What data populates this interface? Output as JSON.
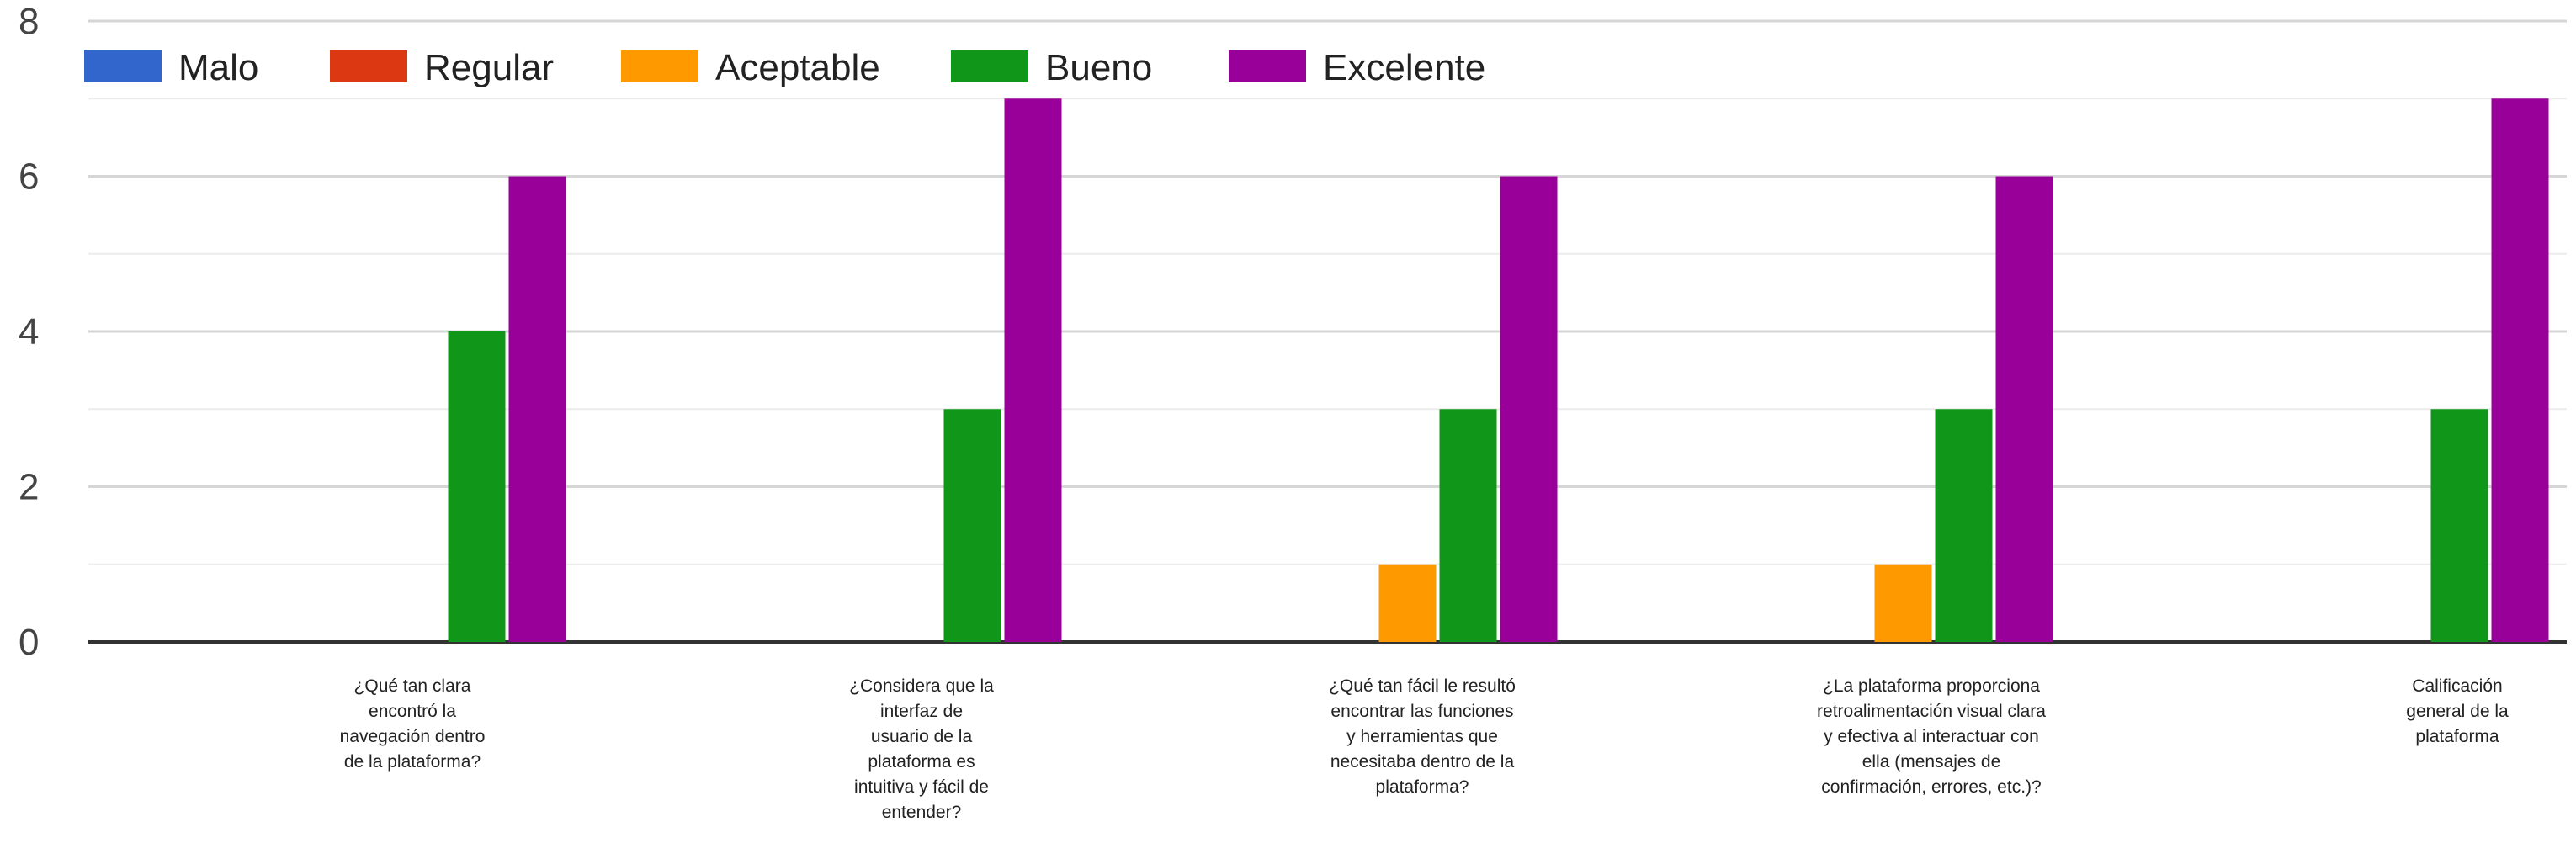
{
  "chart_data": {
    "type": "bar",
    "title": "",
    "xlabel": "",
    "ylabel": "",
    "ylim": [
      0,
      8
    ],
    "yticks": [
      0,
      2,
      4,
      6,
      8
    ],
    "grid": true,
    "legend_position": "top-left",
    "categories": [
      [
        "¿Qué tan clara",
        "encontró la",
        "navegación dentro",
        "de la plataforma?"
      ],
      [
        "¿Considera que la",
        "interfaz de",
        "usuario de la",
        "plataforma es",
        "intuitiva y fácil de",
        "entender?"
      ],
      [
        "¿Qué tan fácil le resultó",
        "encontrar las funciones",
        "y herramientas que",
        "necesitaba dentro de la",
        "plataforma?"
      ],
      [
        "¿La plataforma proporciona",
        "retroalimentación visual clara",
        "y efectiva al interactuar con",
        "ella (mensajes de",
        "confirmación, errores, etc.)?"
      ],
      [
        "Calificación",
        "general de la",
        "plataforma"
      ]
    ],
    "series": [
      {
        "name": "Malo",
        "color": "#3366cc",
        "values": [
          0,
          0,
          0,
          0,
          0
        ]
      },
      {
        "name": "Regular",
        "color": "#dc3912",
        "values": [
          0,
          0,
          0,
          0,
          0
        ]
      },
      {
        "name": "Aceptable",
        "color": "#ff9900",
        "values": [
          0,
          0,
          1,
          1,
          0
        ]
      },
      {
        "name": "Bueno",
        "color": "#109618",
        "values": [
          4,
          3,
          3,
          3,
          3
        ]
      },
      {
        "name": "Excelente",
        "color": "#990099",
        "values": [
          6,
          7,
          6,
          6,
          7
        ]
      }
    ]
  }
}
